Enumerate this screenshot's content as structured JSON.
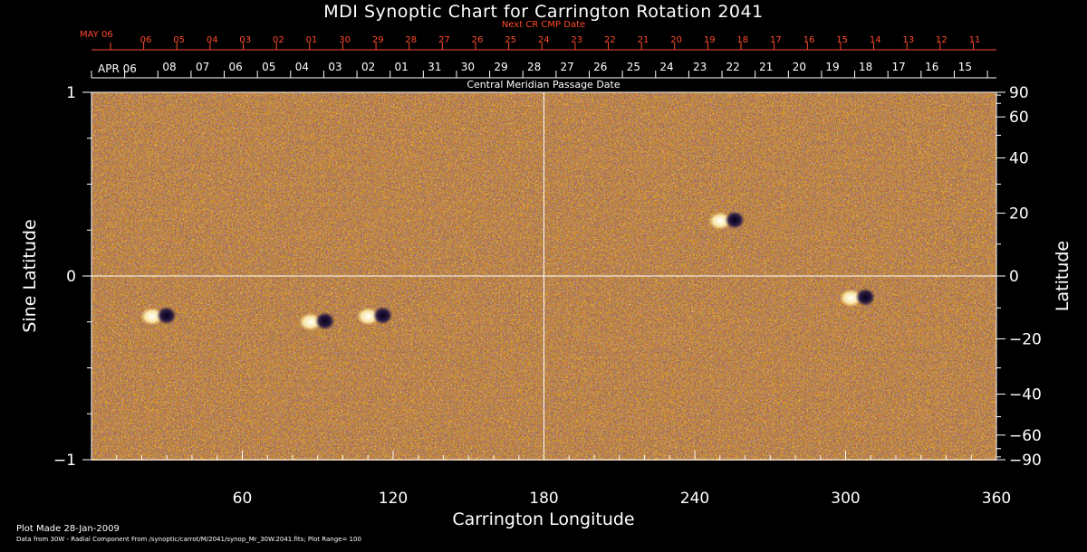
{
  "chart_data": {
    "type": "heatmap",
    "title": "MDI Synoptic Chart for Carrington Rotation 2041",
    "xlabel": "Carrington Longitude",
    "ylabel": "Sine Latitude",
    "ylabel_right": "Latitude",
    "top_axis_label": "Central Meridian Passage Date",
    "next_axis_label": "Next CR CMP Date",
    "xlim": [
      0,
      360
    ],
    "ylim": [
      -1,
      1
    ],
    "grid": true,
    "x_ticks": [
      60,
      120,
      180,
      240,
      300,
      360
    ],
    "y_ticks_left": [
      {
        "value": 1,
        "label": "1"
      },
      {
        "value": 0,
        "label": "0"
      },
      {
        "value": -1,
        "label": "−1"
      }
    ],
    "y_ticks_right": [
      {
        "deg": 90,
        "label": "90"
      },
      {
        "deg": 60,
        "label": "60"
      },
      {
        "deg": 40,
        "label": "40"
      },
      {
        "deg": 20,
        "label": "20"
      },
      {
        "deg": 0,
        "label": "0"
      },
      {
        "deg": -20,
        "label": "−20"
      },
      {
        "deg": -40,
        "label": "−40"
      },
      {
        "deg": -60,
        "label": "−60"
      },
      {
        "deg": -90,
        "label": "−90"
      }
    ],
    "cmp_month": "APR 06",
    "cmp_dates": [
      "08",
      "07",
      "06",
      "05",
      "04",
      "03",
      "02",
      "01",
      "31",
      "30",
      "29",
      "28",
      "27",
      "26",
      "25",
      "24",
      "23",
      "22",
      "21",
      "20",
      "19",
      "18",
      "17",
      "16",
      "15"
    ],
    "next_month": "MAY 06",
    "next_dates": [
      "06",
      "05",
      "04",
      "03",
      "02",
      "01",
      "30",
      "29",
      "28",
      "27",
      "26",
      "25",
      "24",
      "23",
      "22",
      "21",
      "20",
      "19",
      "18",
      "17",
      "16",
      "15",
      "14",
      "13",
      "12",
      "11"
    ],
    "active_regions": [
      {
        "lon": 27,
        "sinlat": -0.22
      },
      {
        "lon": 90,
        "sinlat": -0.25
      },
      {
        "lon": 113,
        "sinlat": -0.22
      },
      {
        "lon": 253,
        "sinlat": 0.3
      },
      {
        "lon": 305,
        "sinlat": -0.12
      }
    ],
    "colors": {
      "positive": "#fff3c0",
      "negative": "#1a1040",
      "background": "#e85a14"
    }
  },
  "footer": {
    "plot_made": "Plot Made 28-Jan-2009",
    "source": "Data from 30W - Radial Component From /synoptic/carrot/M/2041/synop_Mr_30W.2041.fits; Plot Range= 100"
  }
}
